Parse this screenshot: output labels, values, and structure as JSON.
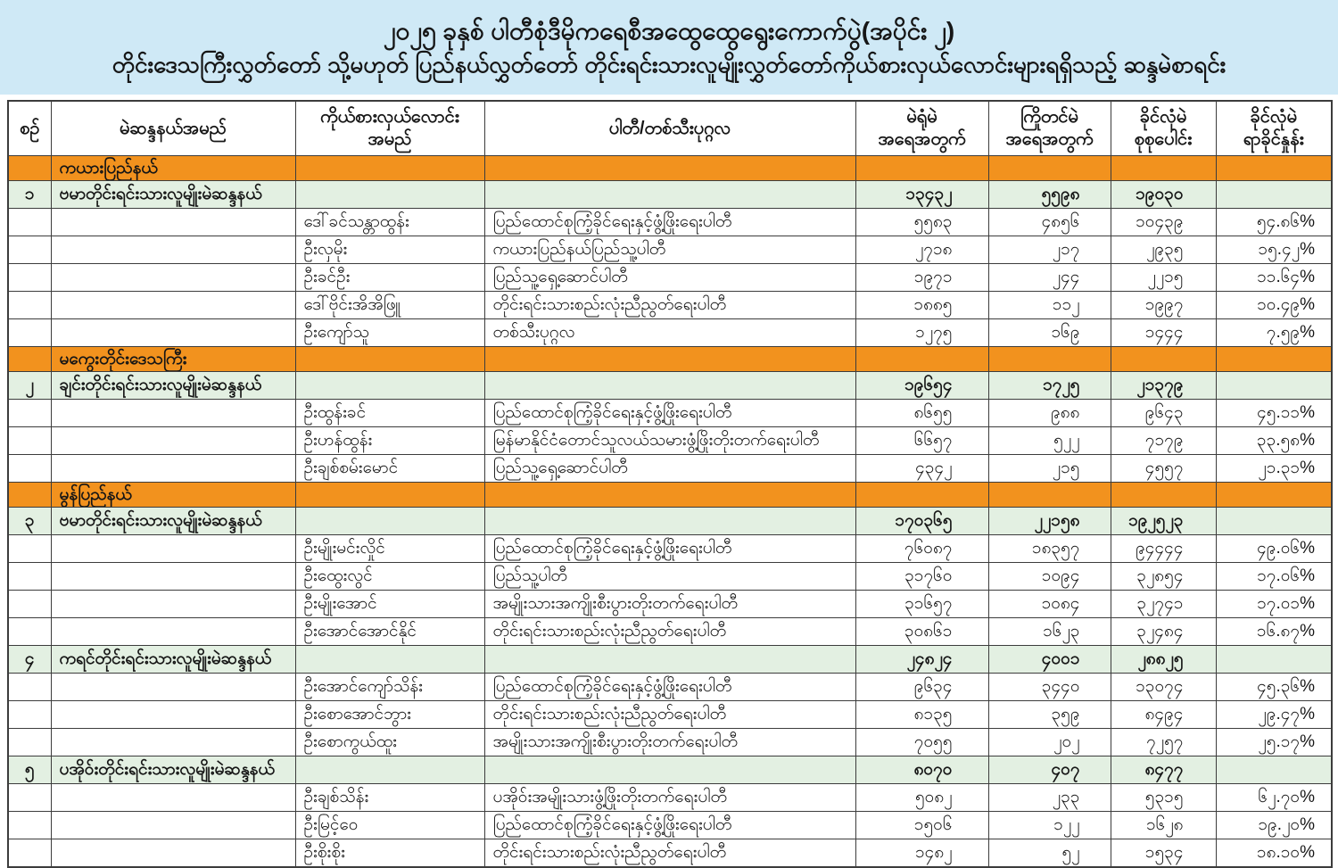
{
  "title": {
    "line1": "၂၀၂၅ ခုနှစ် ပါတီစုံဒီမိုကရေစီအထွေထွေရွေးကောက်ပွဲ(အပိုင်း ၂)",
    "line2": "တိုင်းဒေသကြီးလွှတ်တော် သို့မဟုတ် ပြည်နယ်လွှတ်တော် တိုင်းရင်းသားလူမျိုးလွှတ်တော်ကိုယ်စားလှယ်လောင်းများရရှိသည့် ဆန္ဒမဲစာရင်း"
  },
  "colors": {
    "banner_bg": "#cfe9f6",
    "region_row_bg": "#f2921e",
    "constituency_row_bg": "#e3f0e2",
    "border": "#3c3c3c",
    "text": "#161616"
  },
  "table": {
    "headers": [
      {
        "label": "စဉ်"
      },
      {
        "label": "မဲဆန္ဒနယ်အမည်"
      },
      {
        "line1": "ကိုယ်စားလှယ်လောင်း",
        "line2": "အမည်"
      },
      {
        "label": "ပါတီ/တစ်သီးပုဂ္ဂလ"
      },
      {
        "line1": "မဲရုံမဲ",
        "line2": "အရေအတွက်"
      },
      {
        "line1": "ကြိုတင်မဲ",
        "line2": "အရေအတွက်"
      },
      {
        "line1": "ခိုင်လုံမဲ",
        "line2": "စုစုပေါင်း"
      },
      {
        "line1": "ခိုင်လုံမဲ",
        "line2": "ရာခိုင်နှုန်း"
      }
    ],
    "rows": [
      {
        "type": "region",
        "name": "ကယားပြည်နယ်"
      },
      {
        "type": "constituency",
        "no": "၁",
        "name": "ဗမာတိုင်းရင်းသားလူမျိုးမဲဆန္ဒနယ်",
        "polling": "၁၃၄၃၂",
        "advance": "၅၅၉၈",
        "total": "၁၉၀၃၀",
        "percent": ""
      },
      {
        "type": "candidate",
        "candidate": "ဒေါ်ခင်သန္တာထွန်း",
        "party": "ပြည်ထောင်စုကြံ့ခိုင်ရေးနှင့်ဖွံ့ဖြိုးရေးပါတီ",
        "polling": "၅၅၈၃",
        "advance": "၄၈၅၆",
        "total": "၁၀၄၃၉",
        "percent": "၅၄.၈၆%"
      },
      {
        "type": "candidate",
        "candidate": "ဦးလှမိုး",
        "party": "ကယားပြည်နယ်ပြည်သူ့ပါတီ",
        "polling": "၂၇၁၈",
        "advance": "၂၁၇",
        "total": "၂၉၃၅",
        "percent": "၁၅.၄၂%"
      },
      {
        "type": "candidate",
        "candidate": "ဦးခင်ဦး",
        "party": "ပြည်သူ့ရှေ့ဆောင်ပါတီ",
        "polling": "၁၉၇၁",
        "advance": "၂၄၄",
        "total": "၂၂၁၅",
        "percent": "၁၁.၆၄%"
      },
      {
        "type": "candidate",
        "candidate": "ဒေါ်ဗိုင်းအိအိဖြူ",
        "party": "တိုင်းရင်းသားစည်းလုံးညီညွတ်ရေးပါတီ",
        "polling": "၁၈၈၅",
        "advance": "၁၁၂",
        "total": "၁၉၉၇",
        "percent": "၁၀.၄၉%"
      },
      {
        "type": "candidate",
        "candidate": "ဦးကျော်သူ",
        "party": "တစ်သီးပုဂ္ဂလ",
        "polling": "၁၂၇၅",
        "advance": "၁၆၉",
        "total": "၁၄၄၄",
        "percent": "၇.၅၉%"
      },
      {
        "type": "region",
        "name": "မကွေးတိုင်းဒေသကြီး"
      },
      {
        "type": "constituency",
        "no": "၂",
        "name": "ချင်းတိုင်းရင်းသားလူမျိုးမဲဆန္ဒနယ်",
        "polling": "၁၉၆၅၄",
        "advance": "၁၇၂၅",
        "total": "၂၁၃၇၉",
        "percent": ""
      },
      {
        "type": "candidate",
        "candidate": "ဦးထွန်းခင်",
        "party": "ပြည်ထောင်စုကြံ့ခိုင်ရေးနှင့်ဖွံ့ဖြိုးရေးပါတီ",
        "polling": "၈၆၅၅",
        "advance": "၉၈၈",
        "total": "၉၆၄၃",
        "percent": "၄၅.၁၁%"
      },
      {
        "type": "candidate",
        "candidate": "ဦးဟန်ထွန်း",
        "party": "မြန်မာနိုင်ငံတောင်သူလယ်သမားဖွံ့ဖြိုးတိုးတက်ရေးပါတီ",
        "polling": "၆၆၅၇",
        "advance": "၅၂၂",
        "total": "၇၁၇၉",
        "percent": "၃၃.၅၈%"
      },
      {
        "type": "candidate",
        "candidate": "ဦးချစ်စမ်းမောင်",
        "party": "ပြည်သူ့ရှေ့ဆောင်ပါတီ",
        "polling": "၄၃၄၂",
        "advance": "၂၁၅",
        "total": "၄၅၅၇",
        "percent": "၂၁.၃၁%"
      },
      {
        "type": "region",
        "name": "မွန်ပြည်နယ်"
      },
      {
        "type": "constituency",
        "no": "၃",
        "name": "ဗမာတိုင်းရင်းသားလူမျိုးမဲဆန္ဒနယ်",
        "polling": "၁၇၀၃၆၅",
        "advance": "၂၂၁၅၈",
        "total": "၁၉၂၅၂၃",
        "percent": ""
      },
      {
        "type": "candidate",
        "candidate": "ဦးမျိုးမင်းလှိုင်",
        "party": "ပြည်ထောင်စုကြံ့ခိုင်ရေးနှင့်ဖွံ့ဖြိုးရေးပါတီ",
        "polling": "၇၆၀၈၇",
        "advance": "၁၈၃၅၇",
        "total": "၉၄၄၄၄",
        "percent": "၄၉.၀၆%"
      },
      {
        "type": "candidate",
        "candidate": "ဦးထွေးလွင်",
        "party": "ပြည်သူ့ပါတီ",
        "polling": "၃၁၇၆၀",
        "advance": "၁၀၉၄",
        "total": "၃၂၈၅၄",
        "percent": "၁၇.၀၆%"
      },
      {
        "type": "candidate",
        "candidate": "ဦးမျိုးအောင်",
        "party": "အမျိုးသားအကျိုးစီးပွားတိုးတက်ရေးပါတီ",
        "polling": "၃၁၆၅၇",
        "advance": "၁၀၈၄",
        "total": "၃၂၇၄၁",
        "percent": "၁၇.၀၁%"
      },
      {
        "type": "candidate",
        "candidate": "ဦးအောင်အောင်နိုင်",
        "party": "တိုင်းရင်းသားစည်းလုံးညီညွတ်ရေးပါတီ",
        "polling": "၃၀၈၆၁",
        "advance": "၁၆၂၃",
        "total": "၃၂၄၈၄",
        "percent": "၁၆.၈၇%"
      },
      {
        "type": "constituency",
        "no": "၄",
        "name": "ကရင်တိုင်းရင်းသားလူမျိုးမဲဆန္ဒနယ်",
        "polling": "၂၄၈၂၄",
        "advance": "၄၀၀၁",
        "total": "၂၈၈၂၅",
        "percent": ""
      },
      {
        "type": "candidate",
        "candidate": "ဦးအောင်ကျော်သိန်း",
        "party": "ပြည်ထောင်စုကြံ့ခိုင်ရေးနှင့်ဖွံ့ဖြိုးရေးပါတီ",
        "polling": "၉၆၃၄",
        "advance": "၃၄၄၀",
        "total": "၁၃၀၇၄",
        "percent": "၄၅.၃၆%"
      },
      {
        "type": "candidate",
        "candidate": "ဦးစောအောင်ဘွား",
        "party": "တိုင်းရင်းသားစည်းလုံးညီညွတ်ရေးပါတီ",
        "polling": "၈၁၃၅",
        "advance": "၃၅၉",
        "total": "၈၄၉၄",
        "percent": "၂၉.၄၇%"
      },
      {
        "type": "candidate",
        "candidate": "ဦးစောကွယ်ထူး",
        "party": "အမျိုးသားအကျိုးစီးပွားတိုးတက်ရေးပါတီ",
        "polling": "၇၀၅၅",
        "advance": "၂၀၂",
        "total": "၇၂၅၇",
        "percent": "၂၅.၁၇%"
      },
      {
        "type": "constituency",
        "no": "၅",
        "name": "ပအိုဝ်းတိုင်းရင်းသားလူမျိုးမဲဆန္ဒနယ်",
        "polling": "၈၀၇၀",
        "advance": "၄၀၇",
        "total": "၈၄၇၇",
        "percent": ""
      },
      {
        "type": "candidate",
        "candidate": "ဦးချစ်သိန်း",
        "party": "ပအိုဝ်းအမျိုးသားဖွံ့ဖြိုးတိုးတက်ရေးပါတီ",
        "polling": "၅၀၈၂",
        "advance": "၂၃၃",
        "total": "၅၃၁၅",
        "percent": "၆၂.၇၀%"
      },
      {
        "type": "candidate",
        "candidate": "ဦးမြင့်ဝေ",
        "party": "ပြည်ထောင်စုကြံ့ခိုင်ရေးနှင့်ဖွံ့ဖြိုးရေးပါတီ",
        "polling": "၁၅၀၆",
        "advance": "၁၂၂",
        "total": "၁၆၂၈",
        "percent": "၁၉.၂၀%"
      },
      {
        "type": "candidate",
        "candidate": "ဦးစိုးစိုး",
        "party": "တိုင်းရင်းသားစည်းလုံးညီညွတ်ရေးပါတီ",
        "polling": "၁၄၈၂",
        "advance": "၅၂",
        "total": "၁၅၃၄",
        "percent": "၁၈.၁၀%"
      }
    ]
  }
}
